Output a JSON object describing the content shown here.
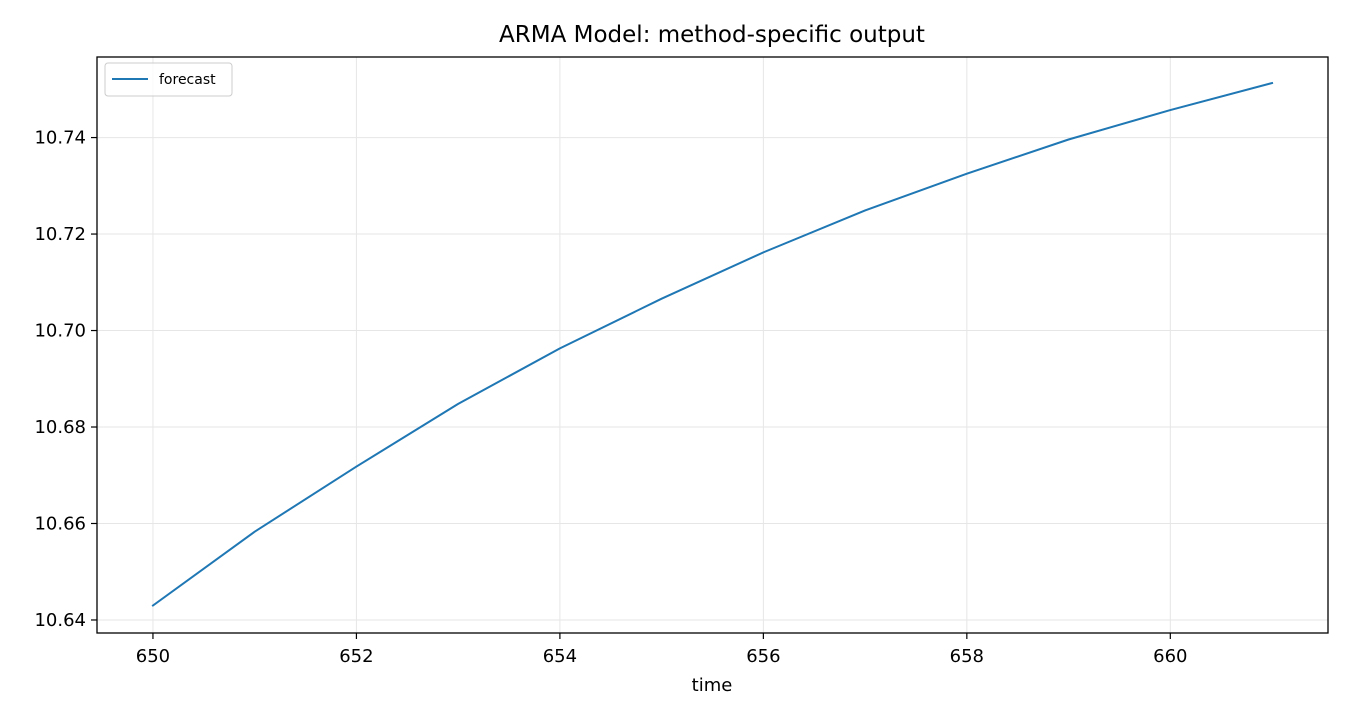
{
  "chart_data": {
    "type": "line",
    "title": "ARMA Model: method-specific output",
    "xlabel": "time",
    "ylabel": "",
    "x_ticks": [
      650,
      652,
      654,
      656,
      658,
      660
    ],
    "y_ticks": [
      10.64,
      10.66,
      10.68,
      10.7,
      10.72,
      10.74
    ],
    "xlim": [
      649.45,
      661.55
    ],
    "ylim": [
      10.6373,
      10.7567
    ],
    "grid": true,
    "legend_position": "top-left",
    "series": [
      {
        "name": "forecast",
        "color": "#1f77b4",
        "x": [
          650,
          651,
          652,
          653,
          654,
          655,
          656,
          657,
          658,
          659,
          660,
          661
        ],
        "y": [
          10.643,
          10.6583,
          10.6718,
          10.6848,
          10.6963,
          10.7066,
          10.7162,
          10.7249,
          10.7325,
          10.7396,
          10.7457,
          10.7513
        ]
      }
    ]
  }
}
